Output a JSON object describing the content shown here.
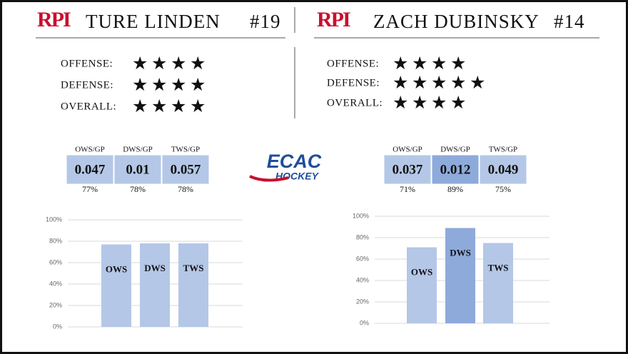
{
  "players": [
    {
      "logo": "RPI",
      "name": "TURE LINDEN",
      "number": "#19",
      "ratings": [
        {
          "label": "OFFENSE:",
          "stars": 4
        },
        {
          "label": "DEFENSE:",
          "stars": 4
        },
        {
          "label": "OVERALL:",
          "stars": 4
        }
      ],
      "stats": [
        {
          "name": "OWS/GP",
          "value": 0.047,
          "percentile": "77%"
        },
        {
          "name": "DWS/GP",
          "value": 0.01,
          "percentile": "78%"
        },
        {
          "name": "TWS/GP",
          "value": 0.057,
          "percentile": "78%"
        }
      ]
    },
    {
      "logo": "RPI",
      "name": "ZACH DUBINSKY",
      "number": "#14",
      "ratings": [
        {
          "label": "OFFENSE:",
          "stars": 4
        },
        {
          "label": "DEFENSE:",
          "stars": 5
        },
        {
          "label": "OVERALL:",
          "stars": 4
        }
      ],
      "stats": [
        {
          "name": "OWS/GP",
          "value": 0.037,
          "percentile": "71%"
        },
        {
          "name": "DWS/GP",
          "value": 0.012,
          "percentile": "89%"
        },
        {
          "name": "TWS/GP",
          "value": 0.049,
          "percentile": "75%"
        }
      ]
    }
  ],
  "league_logo": {
    "line1": "ECAC",
    "line2": "HOCKEY"
  },
  "chart_data": [
    {
      "type": "bar",
      "categories": [
        "OWS",
        "DWS",
        "TWS"
      ],
      "values": [
        77,
        78,
        78
      ],
      "colors": [
        "#b4c7e7",
        "#b4c7e7",
        "#b4c7e7"
      ],
      "ylim": [
        0,
        100
      ],
      "yticks": [
        {
          "value": 0,
          "label": "0%"
        },
        {
          "value": 20,
          "label": "20%"
        },
        {
          "value": 40,
          "label": "40%"
        },
        {
          "value": 60,
          "label": "60%"
        },
        {
          "value": 80,
          "label": "80%"
        },
        {
          "value": 100,
          "label": "100%"
        }
      ],
      "grid": true
    },
    {
      "type": "bar",
      "categories": [
        "OWS",
        "DWS",
        "TWS"
      ],
      "values": [
        71,
        89,
        75
      ],
      "colors": [
        "#b4c7e7",
        "#8eaadb",
        "#b4c7e7"
      ],
      "ylim": [
        0,
        100
      ],
      "yticks": [
        {
          "value": 0,
          "label": "0%"
        },
        {
          "value": 20,
          "label": "20%"
        },
        {
          "value": 40,
          "label": "40%"
        },
        {
          "value": 60,
          "label": "60%"
        },
        {
          "value": 80,
          "label": "80%"
        },
        {
          "value": 100,
          "label": "100%"
        }
      ],
      "grid": true
    }
  ]
}
